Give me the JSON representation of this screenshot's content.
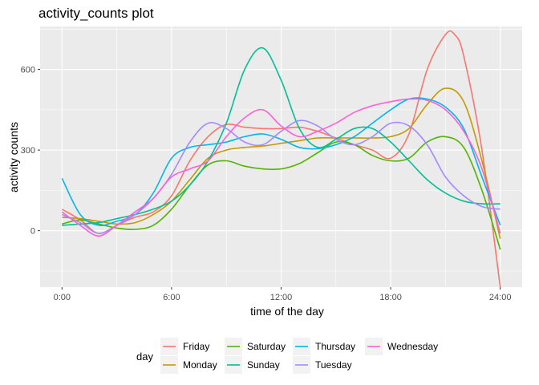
{
  "chart_data": {
    "type": "line",
    "title": "activity_counts plot",
    "xlabel": "time of the day",
    "ylabel": "activity counts",
    "xlim": [
      -1.2,
      25.2
    ],
    "ylim": [
      -210,
      760
    ],
    "x_ticks": [
      {
        "value": 0,
        "label": "0:00"
      },
      {
        "value": 6,
        "label": "6:00"
      },
      {
        "value": 12,
        "label": "12:00"
      },
      {
        "value": 18,
        "label": "18:00"
      },
      {
        "value": 24,
        "label": "24:00"
      }
    ],
    "y_ticks": [
      {
        "value": 0,
        "label": "0"
      },
      {
        "value": 300,
        "label": "300"
      },
      {
        "value": 600,
        "label": "600"
      }
    ],
    "legend_title": "day",
    "legend_position": "bottom",
    "grid": true,
    "series": [
      {
        "name": "Friday",
        "color": "#F8766D",
        "x": [
          0,
          1,
          2,
          3,
          4,
          5,
          6,
          7,
          8,
          9,
          10,
          11,
          12,
          13,
          14,
          15,
          16,
          17,
          18,
          19,
          20,
          21,
          21.5,
          22,
          23,
          24
        ],
        "y": [
          80,
          40,
          -10,
          20,
          50,
          70,
          130,
          260,
          350,
          395,
          385,
          380,
          380,
          385,
          370,
          345,
          320,
          300,
          270,
          360,
          600,
          730,
          730,
          650,
          300,
          -210
        ]
      },
      {
        "name": "Monday",
        "color": "#C49A00",
        "x": [
          0,
          1,
          2,
          3,
          4,
          5,
          6,
          7,
          8,
          9,
          10,
          11,
          12,
          13,
          14,
          15,
          16,
          17,
          18,
          19,
          20,
          21,
          22,
          23,
          24
        ],
        "y": [
          50,
          45,
          35,
          25,
          30,
          60,
          110,
          190,
          270,
          300,
          310,
          315,
          325,
          335,
          345,
          345,
          345,
          345,
          350,
          380,
          470,
          530,
          480,
          260,
          -30
        ]
      },
      {
        "name": "Saturday",
        "color": "#53B400",
        "x": [
          0,
          1,
          2,
          3,
          4,
          5,
          6,
          7,
          8,
          9,
          10,
          11,
          12,
          13,
          14,
          15,
          16,
          17,
          18,
          19,
          20,
          21,
          22,
          23,
          24
        ],
        "y": [
          25,
          40,
          25,
          10,
          5,
          20,
          80,
          170,
          245,
          260,
          240,
          230,
          230,
          250,
          290,
          330,
          320,
          280,
          260,
          270,
          330,
          350,
          310,
          150,
          -70
        ]
      },
      {
        "name": "Sunday",
        "color": "#00C094",
        "x": [
          0,
          1,
          2,
          3,
          4,
          5,
          6,
          7,
          8,
          9,
          10,
          11,
          12,
          13,
          14,
          15,
          16,
          17,
          18,
          19,
          20,
          21,
          22,
          23,
          24
        ],
        "y": [
          20,
          25,
          30,
          45,
          60,
          80,
          110,
          170,
          260,
          400,
          600,
          680,
          560,
          380,
          310,
          340,
          380,
          380,
          330,
          260,
          190,
          140,
          110,
          100,
          100
        ]
      },
      {
        "name": "Thursday",
        "color": "#00B6EB",
        "x": [
          0,
          1,
          2,
          3,
          4,
          5,
          6,
          7,
          8,
          9,
          10,
          11,
          12,
          13,
          14,
          15,
          16,
          17,
          18,
          19,
          20,
          21,
          22,
          23,
          24
        ],
        "y": [
          195,
          60,
          20,
          35,
          60,
          140,
          270,
          310,
          320,
          330,
          350,
          360,
          340,
          310,
          305,
          320,
          350,
          400,
          450,
          490,
          490,
          460,
          380,
          200,
          20
        ]
      },
      {
        "name": "Tuesday",
        "color": "#A58AFF",
        "x": [
          0,
          1,
          2,
          3,
          4,
          5,
          6,
          7,
          8,
          9,
          10,
          11,
          12,
          13,
          14,
          15,
          16,
          17,
          18,
          19,
          20,
          21,
          22,
          23,
          24
        ],
        "y": [
          60,
          30,
          -10,
          20,
          60,
          120,
          210,
          330,
          400,
          380,
          330,
          320,
          370,
          410,
          390,
          340,
          320,
          350,
          400,
          390,
          320,
          200,
          130,
          90,
          80
        ]
      },
      {
        "name": "Wednesday",
        "color": "#FB61D7",
        "x": [
          0,
          1,
          2,
          3,
          4,
          5,
          6,
          7,
          8,
          9,
          10,
          11,
          12,
          13,
          14,
          15,
          16,
          17,
          18,
          19,
          20,
          21,
          22,
          23,
          24
        ],
        "y": [
          70,
          20,
          -20,
          20,
          70,
          120,
          200,
          230,
          260,
          350,
          420,
          450,
          390,
          350,
          370,
          400,
          440,
          465,
          480,
          490,
          485,
          450,
          370,
          230,
          -10
        ]
      }
    ]
  }
}
